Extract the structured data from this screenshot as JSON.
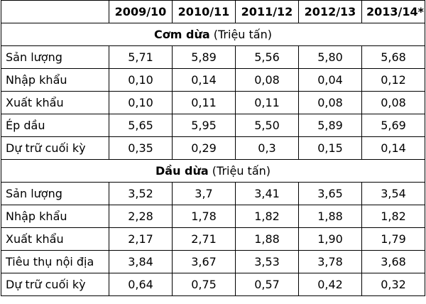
{
  "table": {
    "columns": [
      "2009/10",
      "2010/11",
      "2011/12",
      "2012/13",
      "2013/14*"
    ],
    "sections": [
      {
        "title": "Cơm dừa",
        "unit": "(Triệu tấn)",
        "rows": [
          {
            "label": "Sản lượng",
            "values": [
              "5,71",
              "5,89",
              "5,56",
              "5,80",
              "5,68"
            ]
          },
          {
            "label": "Nhập khẩu",
            "values": [
              "0,10",
              "0,14",
              "0,08",
              "0,04",
              "0,12"
            ]
          },
          {
            "label": "Xuất khẩu",
            "values": [
              "0,10",
              "0,11",
              "0,11",
              "0,08",
              "0,08"
            ]
          },
          {
            "label": "Ép dầu",
            "values": [
              "5,65",
              "5,95",
              "5,50",
              "5,89",
              "5,69"
            ]
          },
          {
            "label": "Dự trữ cuối kỳ",
            "values": [
              "0,35",
              "0,29",
              "0,3",
              "0,15",
              "0,14"
            ]
          }
        ]
      },
      {
        "title": "Dầu dừa",
        "unit": "(Triệu tấn)",
        "rows": [
          {
            "label": "Sản lượng",
            "values": [
              "3,52",
              "3,7",
              "3,41",
              "3,65",
              "3,54"
            ]
          },
          {
            "label": "Nhập khẩu",
            "values": [
              "2,28",
              "1,78",
              "1,82",
              "1,88",
              "1,82"
            ]
          },
          {
            "label": "Xuất khẩu",
            "values": [
              "2,17",
              "2,71",
              "1,88",
              "1,90",
              "1,79"
            ]
          },
          {
            "label": "Tiêu thụ nội địa",
            "values": [
              "3,84",
              "3,67",
              "3,53",
              "3,78",
              "3,68"
            ]
          },
          {
            "label": "Dự trữ cuối kỳ",
            "values": [
              "0,64",
              "0,75",
              "0,57",
              "0,42",
              "0,32"
            ]
          }
        ]
      }
    ]
  }
}
